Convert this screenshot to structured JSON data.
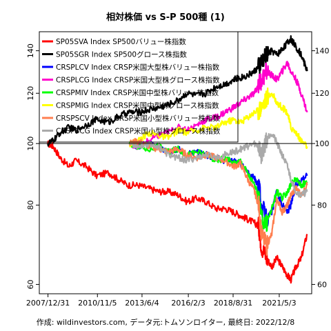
{
  "chart_data": {
    "type": "line",
    "title": "相対株価 vs S-P 500種 (1)",
    "caption": "作成: wildinvestors.com, データ元:トムソンロイター, 最終日: 2022/12/8",
    "y_scale": "log",
    "ylim": [
      58,
      150
    ],
    "y_ticks": [
      60,
      80,
      100,
      120,
      140
    ],
    "x_ticks": [
      "2007/12/31",
      "2010/11/5",
      "2013/6/4",
      "2016/2/3",
      "2018/8/31",
      "2021/5/3"
    ],
    "reference_line": 100,
    "legend_position": "top-left",
    "series": [
      {
        "name": "SP05SVA Index SP500バリュー株指数",
        "color": "#ff0000",
        "points": [
          [
            2007.99,
            100
          ],
          [
            2008.3,
            99
          ],
          [
            2008.7,
            95
          ],
          [
            2009.2,
            92
          ],
          [
            2009.6,
            94
          ],
          [
            2010.2,
            92
          ],
          [
            2010.8,
            89
          ],
          [
            2011.5,
            90
          ],
          [
            2012.0,
            88
          ],
          [
            2012.6,
            86
          ],
          [
            2013.2,
            86
          ],
          [
            2013.8,
            85
          ],
          [
            2014.4,
            84
          ],
          [
            2014.9,
            84
          ],
          [
            2015.5,
            83
          ],
          [
            2016.0,
            81
          ],
          [
            2016.6,
            82
          ],
          [
            2017.1,
            81
          ],
          [
            2017.7,
            79
          ],
          [
            2018.2,
            79
          ],
          [
            2018.7,
            78
          ],
          [
            2019.1,
            77
          ],
          [
            2019.5,
            76
          ],
          [
            2019.9,
            75
          ],
          [
            2020.15,
            74
          ],
          [
            2020.3,
            69
          ],
          [
            2020.6,
            66
          ],
          [
            2020.9,
            64
          ],
          [
            2021.2,
            66
          ],
          [
            2021.5,
            64
          ],
          [
            2021.8,
            62
          ],
          [
            2022.0,
            61
          ],
          [
            2022.3,
            64
          ],
          [
            2022.6,
            66
          ],
          [
            2022.94,
            72
          ]
        ]
      },
      {
        "name": "SP05SGR Index SP500グロース株指数",
        "color": "#000000",
        "points": [
          [
            2007.99,
            100
          ],
          [
            2008.3,
            101
          ],
          [
            2008.7,
            104
          ],
          [
            2009.2,
            106
          ],
          [
            2009.6,
            105
          ],
          [
            2010.2,
            107
          ],
          [
            2010.8,
            109
          ],
          [
            2011.5,
            108
          ],
          [
            2012.0,
            110
          ],
          [
            2012.6,
            112
          ],
          [
            2013.2,
            112
          ],
          [
            2013.8,
            113
          ],
          [
            2014.4,
            114
          ],
          [
            2014.9,
            115
          ],
          [
            2015.5,
            117
          ],
          [
            2016.0,
            120
          ],
          [
            2016.6,
            119
          ],
          [
            2017.1,
            120
          ],
          [
            2017.7,
            123
          ],
          [
            2018.2,
            124
          ],
          [
            2018.7,
            126
          ],
          [
            2019.1,
            127
          ],
          [
            2019.5,
            128
          ],
          [
            2019.9,
            130
          ],
          [
            2020.15,
            132
          ],
          [
            2020.3,
            134
          ],
          [
            2020.6,
            138
          ],
          [
            2020.9,
            140
          ],
          [
            2021.2,
            138
          ],
          [
            2021.5,
            141
          ],
          [
            2021.8,
            144
          ],
          [
            2022.0,
            146
          ],
          [
            2022.3,
            142
          ],
          [
            2022.6,
            138
          ],
          [
            2022.94,
            130
          ]
        ]
      },
      {
        "name": "CRSPLCV Index CRSP米国大型株バリュー株指数",
        "color": "#0000ff",
        "points": [
          [
            2012.7,
            100
          ],
          [
            2013.2,
            99
          ],
          [
            2013.8,
            100
          ],
          [
            2014.4,
            99
          ],
          [
            2014.9,
            97
          ],
          [
            2015.5,
            98
          ],
          [
            2016.0,
            96
          ],
          [
            2016.6,
            97
          ],
          [
            2017.1,
            96
          ],
          [
            2017.7,
            95
          ],
          [
            2018.2,
            94
          ],
          [
            2018.7,
            94
          ],
          [
            2019.1,
            93
          ],
          [
            2019.5,
            90
          ],
          [
            2019.9,
            88
          ],
          [
            2020.15,
            86
          ],
          [
            2020.3,
            80
          ],
          [
            2020.6,
            76
          ],
          [
            2020.9,
            78
          ],
          [
            2021.2,
            84
          ],
          [
            2021.5,
            80
          ],
          [
            2021.8,
            78
          ],
          [
            2022.0,
            80
          ],
          [
            2022.3,
            86
          ],
          [
            2022.6,
            88
          ],
          [
            2022.94,
            89
          ]
        ]
      },
      {
        "name": "CRSPLCG Index CRSP米国大型株グロース株指数",
        "color": "#ff00cc",
        "points": [
          [
            2012.7,
            100
          ],
          [
            2013.2,
            99
          ],
          [
            2013.8,
            101
          ],
          [
            2014.4,
            103
          ],
          [
            2014.9,
            104
          ],
          [
            2015.5,
            106
          ],
          [
            2016.0,
            105
          ],
          [
            2016.6,
            107
          ],
          [
            2017.1,
            109
          ],
          [
            2017.7,
            110
          ],
          [
            2018.2,
            112
          ],
          [
            2018.7,
            114
          ],
          [
            2019.1,
            116
          ],
          [
            2019.5,
            118
          ],
          [
            2019.9,
            120
          ],
          [
            2020.15,
            124
          ],
          [
            2020.3,
            126
          ],
          [
            2020.6,
            130
          ],
          [
            2020.9,
            128
          ],
          [
            2021.2,
            126
          ],
          [
            2021.5,
            130
          ],
          [
            2021.8,
            134
          ],
          [
            2022.0,
            130
          ],
          [
            2022.3,
            126
          ],
          [
            2022.6,
            120
          ],
          [
            2022.94,
            112
          ]
        ]
      },
      {
        "name": "CRSPMIV Index CRSP米国中型株バリュー株指数",
        "color": "#00ff00",
        "points": [
          [
            2012.7,
            100
          ],
          [
            2013.2,
            99
          ],
          [
            2013.8,
            98
          ],
          [
            2014.4,
            99
          ],
          [
            2014.9,
            97
          ],
          [
            2015.5,
            98
          ],
          [
            2016.0,
            96
          ],
          [
            2016.6,
            97
          ],
          [
            2017.1,
            96
          ],
          [
            2017.7,
            94
          ],
          [
            2018.2,
            95
          ],
          [
            2018.7,
            93
          ],
          [
            2019.1,
            94
          ],
          [
            2019.5,
            90
          ],
          [
            2019.9,
            86
          ],
          [
            2020.15,
            82
          ],
          [
            2020.3,
            76
          ],
          [
            2020.6,
            75
          ],
          [
            2020.9,
            79
          ],
          [
            2021.2,
            84
          ],
          [
            2021.5,
            82
          ],
          [
            2021.8,
            84
          ],
          [
            2022.0,
            86
          ],
          [
            2022.3,
            88
          ],
          [
            2022.6,
            86
          ],
          [
            2022.94,
            87
          ]
        ]
      },
      {
        "name": "CRSPMIG Index CRSP米国中型株グロース株指数",
        "color": "#ffff00",
        "points": [
          [
            2012.7,
            100
          ],
          [
            2013.2,
            101
          ],
          [
            2013.8,
            104
          ],
          [
            2014.4,
            103
          ],
          [
            2014.9,
            102
          ],
          [
            2015.5,
            105
          ],
          [
            2016.0,
            104
          ],
          [
            2016.6,
            105
          ],
          [
            2017.1,
            106
          ],
          [
            2017.7,
            106
          ],
          [
            2018.2,
            108
          ],
          [
            2018.7,
            109
          ],
          [
            2019.1,
            108
          ],
          [
            2019.5,
            110
          ],
          [
            2019.9,
            112
          ],
          [
            2020.15,
            113
          ],
          [
            2020.3,
            114
          ],
          [
            2020.6,
            118
          ],
          [
            2020.9,
            120
          ],
          [
            2021.2,
            116
          ],
          [
            2021.5,
            114
          ],
          [
            2021.8,
            112
          ],
          [
            2022.0,
            106
          ],
          [
            2022.3,
            104
          ],
          [
            2022.6,
            101
          ],
          [
            2022.94,
            99
          ]
        ]
      },
      {
        "name": "CRSPSCV Index CRSP米国小型株バリュー株指数",
        "color": "#ff7f50",
        "points": [
          [
            2012.7,
            100
          ],
          [
            2013.2,
            101
          ],
          [
            2013.8,
            99
          ],
          [
            2014.4,
            98
          ],
          [
            2014.9,
            97
          ],
          [
            2015.5,
            98
          ],
          [
            2016.0,
            96
          ],
          [
            2016.6,
            95
          ],
          [
            2017.1,
            96
          ],
          [
            2017.7,
            95
          ],
          [
            2018.2,
            94
          ],
          [
            2018.7,
            92
          ],
          [
            2019.1,
            93
          ],
          [
            2019.5,
            88
          ],
          [
            2019.9,
            84
          ],
          [
            2020.15,
            80
          ],
          [
            2020.3,
            72
          ],
          [
            2020.6,
            69
          ],
          [
            2020.9,
            72
          ],
          [
            2021.2,
            82
          ],
          [
            2021.5,
            78
          ],
          [
            2021.8,
            80
          ],
          [
            2022.0,
            83
          ],
          [
            2022.3,
            85
          ],
          [
            2022.6,
            83
          ],
          [
            2022.94,
            86
          ]
        ]
      },
      {
        "name": "CRSPSCG Index CRSP米国小型株グロース株指数",
        "color": "#aaaaaa",
        "points": [
          [
            2012.7,
            100
          ],
          [
            2013.2,
            99
          ],
          [
            2013.8,
            100
          ],
          [
            2014.4,
            99
          ],
          [
            2014.9,
            96
          ],
          [
            2015.5,
            95
          ],
          [
            2016.0,
            94
          ],
          [
            2016.6,
            95
          ],
          [
            2017.1,
            96
          ],
          [
            2017.7,
            95
          ],
          [
            2018.2,
            96
          ],
          [
            2018.7,
            97
          ],
          [
            2019.1,
            98
          ],
          [
            2019.5,
            99
          ],
          [
            2019.9,
            100
          ],
          [
            2020.15,
            99
          ],
          [
            2020.3,
            96
          ],
          [
            2020.6,
            102
          ],
          [
            2020.9,
            104
          ],
          [
            2021.2,
            100
          ],
          [
            2021.5,
            96
          ],
          [
            2021.8,
            92
          ],
          [
            2022.0,
            88
          ],
          [
            2022.3,
            84
          ],
          [
            2022.6,
            83
          ],
          [
            2022.94,
            84
          ]
        ]
      }
    ]
  }
}
